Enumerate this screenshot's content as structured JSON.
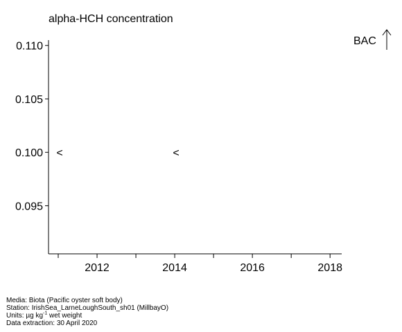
{
  "chart_data": {
    "type": "scatter",
    "title": "alpha-HCH concentration",
    "xlabel": "",
    "ylabel": "",
    "xlim": [
      2010.75,
      2018.3
    ],
    "ylim": [
      0.0905,
      0.1105
    ],
    "x_ticks_major": [
      2012,
      2014,
      2016,
      2018
    ],
    "x_ticks_minor": [
      2011,
      2013,
      2015,
      2017
    ],
    "y_ticks": [
      0.095,
      0.1,
      0.105,
      0.11
    ],
    "y_tick_labels": [
      "0.095",
      "0.100",
      "0.105",
      "0.110"
    ],
    "marker": "<",
    "points": [
      {
        "x": 2011,
        "y": 0.1,
        "label": "<"
      },
      {
        "x": 2014,
        "y": 0.1,
        "label": "<"
      }
    ],
    "reference": {
      "name": "BAC",
      "direction": "above",
      "arrow": "↑"
    }
  },
  "footer": {
    "media": "Media: Biota (Pacific oyster soft body)",
    "station": "Station: IrishSea_LarneLoughSouth_sh01 (MillbayO)",
    "units_prefix": "Units:  µg kg",
    "units_sup": "-1",
    "units_suffix": " wet weight",
    "extraction": "Data extraction: 30 April 2020"
  }
}
